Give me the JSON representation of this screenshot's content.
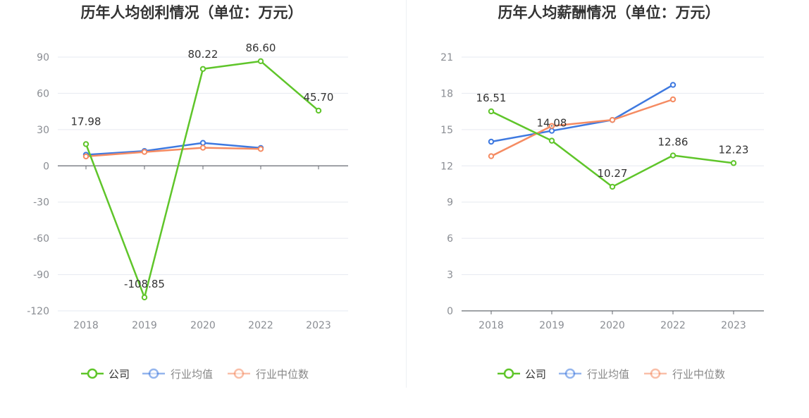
{
  "legend": {
    "company": "公司",
    "avg": "行业均值",
    "median": "行业中位数"
  },
  "colors": {
    "company": "#5fc52a",
    "avg": "#3e79e0",
    "median": "#f58b62",
    "grid": "#e6e9f0",
    "axis": "#666a70",
    "tick": "#8a8d93",
    "title": "#333333",
    "label": "#333333"
  },
  "chart_data": [
    {
      "type": "line",
      "title": "历年人均创利情况（单位：万元）",
      "categories": [
        "2018",
        "2019",
        "2020",
        "2022",
        "2023"
      ],
      "yticks": [
        "90",
        "60",
        "30",
        "0",
        "-30",
        "-60",
        "-90",
        "-120"
      ],
      "ylim": [
        -120,
        90
      ],
      "grid": true,
      "legend_position": "bottom",
      "series": [
        {
          "name": "公司",
          "key": "company",
          "values": [
            17.98,
            -108.85,
            80.22,
            86.6,
            45.7
          ],
          "labels": [
            "17.98",
            "-108.85",
            "80.22",
            "86.60",
            "45.70"
          ]
        },
        {
          "name": "行业均值",
          "key": "avg",
          "values": [
            9.2,
            12.3,
            19.0,
            14.8,
            null
          ]
        },
        {
          "name": "行业中位数",
          "key": "median",
          "values": [
            7.8,
            11.5,
            15.0,
            14.0,
            null
          ]
        }
      ]
    },
    {
      "type": "line",
      "title": "历年人均薪酬情况（单位：万元）",
      "categories": [
        "2018",
        "2019",
        "2020",
        "2022",
        "2023"
      ],
      "yticks": [
        "21",
        "18",
        "15",
        "12",
        "9",
        "6",
        "3",
        "0"
      ],
      "ylim": [
        0,
        21
      ],
      "grid": true,
      "legend_position": "bottom",
      "series": [
        {
          "name": "公司",
          "key": "company",
          "values": [
            16.51,
            14.08,
            10.27,
            12.86,
            12.23
          ],
          "labels": [
            "16.51",
            "14.08",
            "10.27",
            "12.86",
            "12.23"
          ]
        },
        {
          "name": "行业均值",
          "key": "avg",
          "values": [
            14.0,
            14.9,
            15.8,
            18.7,
            null
          ]
        },
        {
          "name": "行业中位数",
          "key": "median",
          "values": [
            12.8,
            15.3,
            15.8,
            17.5,
            null
          ]
        }
      ]
    }
  ]
}
